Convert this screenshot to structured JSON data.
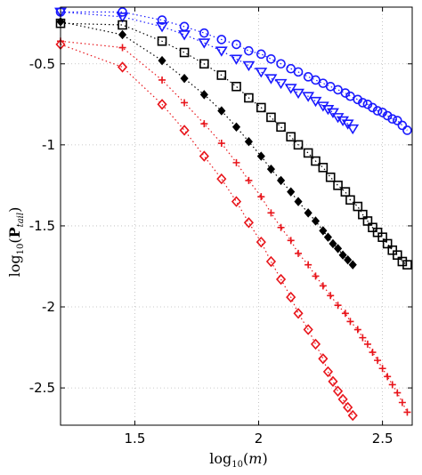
{
  "chart_data": {
    "type": "scatter",
    "xlabel_parts": [
      "log",
      "10",
      "(",
      "m",
      ")"
    ],
    "ylabel_parts": [
      "log",
      "10",
      "(",
      "P",
      "tail",
      ")"
    ],
    "xlim": [
      1.2,
      2.62
    ],
    "ylim": [
      -2.73,
      -0.15
    ],
    "xticks": [
      1.5,
      2,
      2.5
    ],
    "xtick_labels": [
      "1.5",
      "2",
      "2.5"
    ],
    "yticks": [
      -2.5,
      -2,
      -1.5,
      -1,
      -0.5
    ],
    "ytick_labels": [
      "-2.5",
      "-2",
      "-1.5",
      "-1",
      "-0.5"
    ],
    "grid": true,
    "series": [
      {
        "marker": "circle",
        "color": "#1a1aff",
        "line": "dotted",
        "x": [
          1.2,
          1.45,
          1.61,
          1.7,
          1.78,
          1.85,
          1.91,
          1.96,
          2.01,
          2.05,
          2.09,
          2.13,
          2.16,
          2.2,
          2.23,
          2.26,
          2.29,
          2.32,
          2.35,
          2.37,
          2.4,
          2.42,
          2.44,
          2.46,
          2.48,
          2.5,
          2.52,
          2.54,
          2.56,
          2.58,
          2.6
        ],
        "y": [
          -0.18,
          -0.18,
          -0.23,
          -0.27,
          -0.31,
          -0.35,
          -0.38,
          -0.42,
          -0.44,
          -0.47,
          -0.5,
          -0.53,
          -0.55,
          -0.58,
          -0.6,
          -0.62,
          -0.64,
          -0.66,
          -0.68,
          -0.7,
          -0.72,
          -0.74,
          -0.75,
          -0.77,
          -0.79,
          -0.8,
          -0.82,
          -0.84,
          -0.85,
          -0.88,
          -0.91
        ]
      },
      {
        "marker": "triangle-down",
        "color": "#1a1aff",
        "line": "dotted",
        "x": [
          1.2,
          1.45,
          1.61,
          1.7,
          1.78,
          1.85,
          1.91,
          1.96,
          2.01,
          2.05,
          2.09,
          2.13,
          2.16,
          2.2,
          2.23,
          2.26,
          2.28,
          2.3,
          2.32,
          2.34,
          2.36,
          2.38
        ],
        "y": [
          -0.18,
          -0.21,
          -0.27,
          -0.32,
          -0.37,
          -0.42,
          -0.47,
          -0.51,
          -0.55,
          -0.59,
          -0.62,
          -0.65,
          -0.68,
          -0.7,
          -0.73,
          -0.76,
          -0.78,
          -0.8,
          -0.83,
          -0.85,
          -0.87,
          -0.9
        ]
      },
      {
        "marker": "square",
        "color": "#000000",
        "line": "dotted",
        "x": [
          1.2,
          1.45,
          1.61,
          1.7,
          1.78,
          1.85,
          1.91,
          1.96,
          2.01,
          2.05,
          2.09,
          2.13,
          2.16,
          2.2,
          2.23,
          2.26,
          2.29,
          2.32,
          2.35,
          2.37,
          2.4,
          2.42,
          2.44,
          2.46,
          2.48,
          2.5,
          2.52,
          2.54,
          2.56,
          2.58,
          2.6
        ],
        "y": [
          -0.25,
          -0.26,
          -0.36,
          -0.43,
          -0.5,
          -0.57,
          -0.64,
          -0.71,
          -0.77,
          -0.83,
          -0.89,
          -0.95,
          -1.0,
          -1.05,
          -1.1,
          -1.14,
          -1.2,
          -1.25,
          -1.29,
          -1.34,
          -1.38,
          -1.43,
          -1.47,
          -1.51,
          -1.54,
          -1.57,
          -1.61,
          -1.65,
          -1.68,
          -1.72,
          -1.74
        ]
      },
      {
        "marker": "diamond-filled",
        "color": "#000000",
        "line": "dotted",
        "x": [
          1.2,
          1.45,
          1.61,
          1.7,
          1.78,
          1.85,
          1.91,
          1.96,
          2.01,
          2.05,
          2.09,
          2.13,
          2.16,
          2.2,
          2.23,
          2.26,
          2.28,
          2.3,
          2.32,
          2.34,
          2.36,
          2.38
        ],
        "y": [
          -0.24,
          -0.32,
          -0.48,
          -0.59,
          -0.69,
          -0.79,
          -0.89,
          -0.98,
          -1.07,
          -1.15,
          -1.22,
          -1.29,
          -1.35,
          -1.42,
          -1.47,
          -1.53,
          -1.57,
          -1.61,
          -1.64,
          -1.68,
          -1.71,
          -1.74
        ]
      },
      {
        "marker": "plus",
        "color": "#e8151b",
        "line": "dotted",
        "x": [
          1.2,
          1.45,
          1.61,
          1.7,
          1.78,
          1.85,
          1.91,
          1.96,
          2.01,
          2.05,
          2.09,
          2.13,
          2.16,
          2.2,
          2.23,
          2.26,
          2.29,
          2.32,
          2.35,
          2.37,
          2.4,
          2.42,
          2.44,
          2.46,
          2.48,
          2.5,
          2.52,
          2.54,
          2.56,
          2.58,
          2.6
        ],
        "y": [
          -0.36,
          -0.4,
          -0.6,
          -0.74,
          -0.87,
          -0.99,
          -1.11,
          -1.22,
          -1.32,
          -1.42,
          -1.51,
          -1.59,
          -1.67,
          -1.74,
          -1.81,
          -1.87,
          -1.93,
          -1.99,
          -2.04,
          -2.09,
          -2.14,
          -2.19,
          -2.23,
          -2.28,
          -2.33,
          -2.38,
          -2.43,
          -2.48,
          -2.53,
          -2.59,
          -2.65
        ]
      },
      {
        "marker": "diamond",
        "color": "#e8151b",
        "line": "dotted",
        "x": [
          1.2,
          1.45,
          1.61,
          1.7,
          1.78,
          1.85,
          1.91,
          1.96,
          2.01,
          2.05,
          2.09,
          2.13,
          2.16,
          2.2,
          2.23,
          2.26,
          2.28,
          2.3,
          2.32,
          2.34,
          2.36,
          2.38
        ],
        "y": [
          -0.38,
          -0.52,
          -0.75,
          -0.91,
          -1.07,
          -1.21,
          -1.35,
          -1.48,
          -1.6,
          -1.72,
          -1.83,
          -1.94,
          -2.04,
          -2.14,
          -2.23,
          -2.32,
          -2.4,
          -2.46,
          -2.52,
          -2.57,
          -2.62,
          -2.67
        ]
      }
    ]
  }
}
